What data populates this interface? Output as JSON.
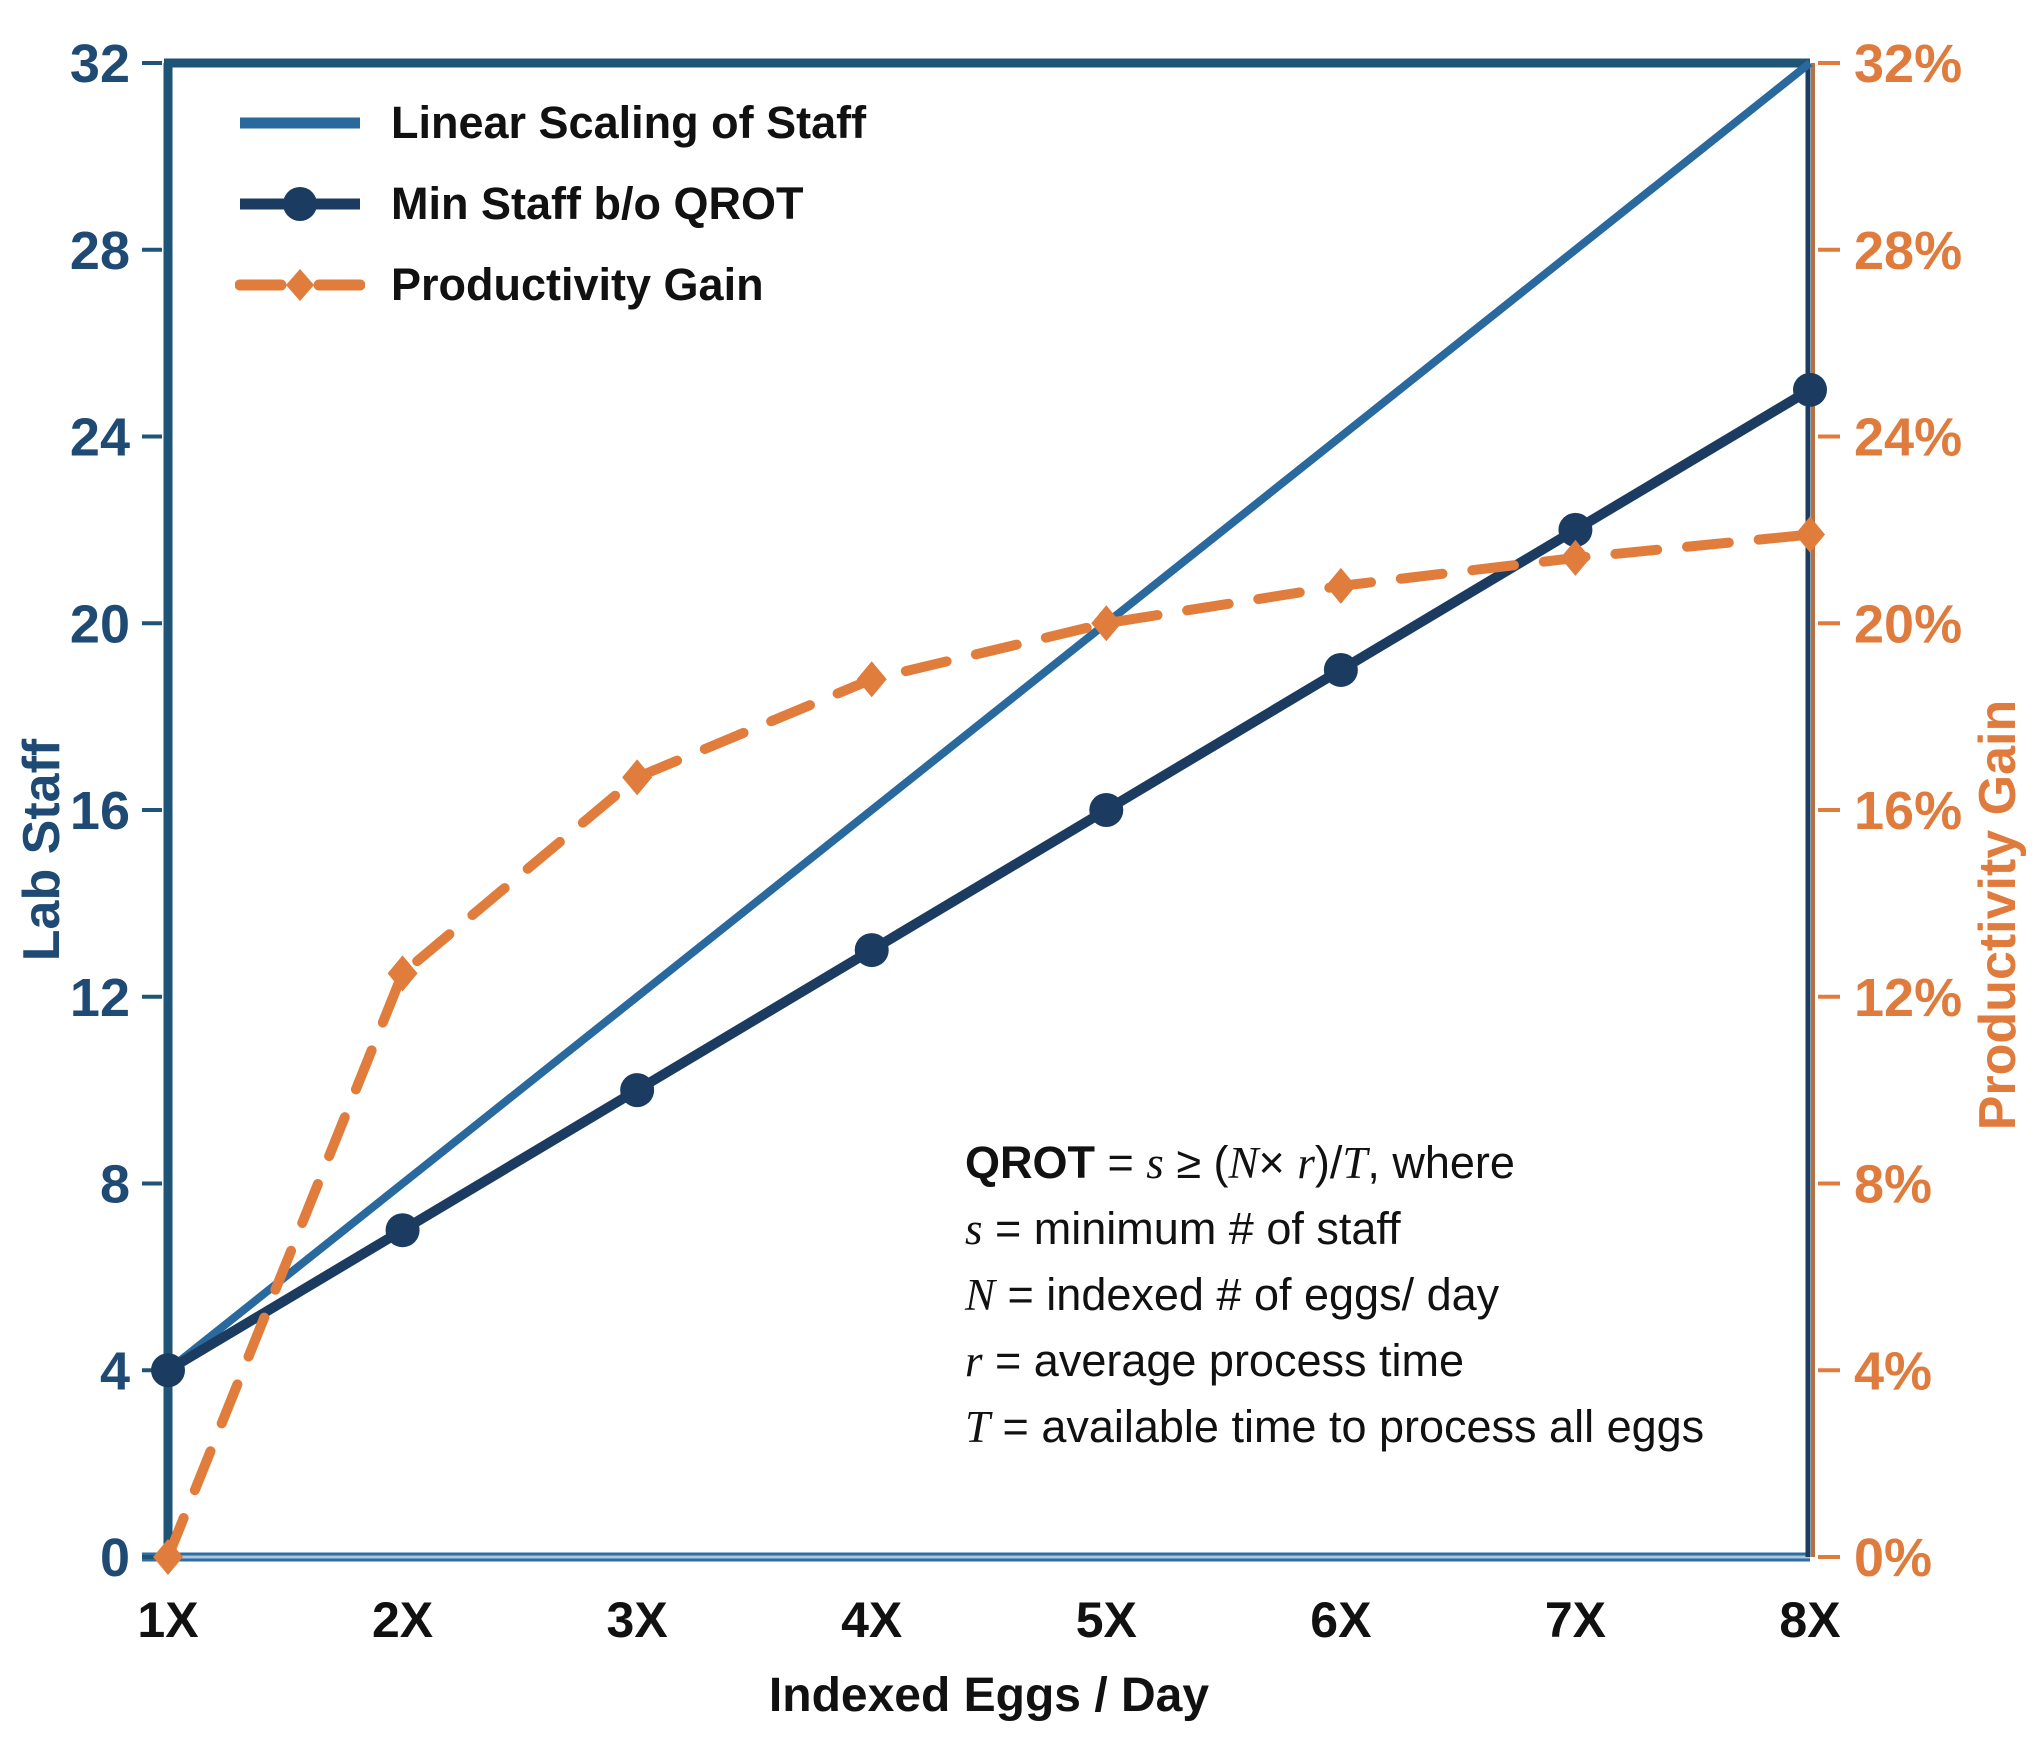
{
  "colors": {
    "linear_blue": "#2A699E",
    "navy": "#1B3C60",
    "orange": "#E07C3C",
    "left_text": "#1F4A73",
    "orange_text": "#DE7B3D",
    "black_text": "#111111",
    "spine_top_left": "#1E5576",
    "spine_bottom_outer": "#2E6DA4",
    "spine_bottom_inner": "#A9C6DE",
    "spine_right_navy": "#1B3C60",
    "spine_right_orange": "#B5713F"
  },
  "chart_data": {
    "type": "line",
    "title": "",
    "xlabel": "Indexed Eggs / Day",
    "ylabel_left": "Lab Staff",
    "ylabel_right": "Productivity Gain",
    "x_categories": [
      "1X",
      "2X",
      "3X",
      "4X",
      "5X",
      "6X",
      "7X",
      "8X"
    ],
    "ylim_left": [
      0,
      32
    ],
    "ylim_right_percent": [
      0,
      32
    ],
    "grid": false,
    "legend_position": "top-left-inside",
    "y_ticks_left": {
      "values": [
        0,
        4,
        8,
        12,
        16,
        20,
        24,
        28,
        32
      ],
      "labels": [
        "0",
        "4",
        "8",
        "12",
        "16",
        "20",
        "24",
        "28",
        "32"
      ]
    },
    "y_ticks_right": {
      "values": [
        0,
        4,
        8,
        12,
        16,
        20,
        24,
        28,
        32
      ],
      "labels": [
        "0%",
        "4%",
        "8%",
        "12%",
        "16%",
        "20%",
        "24%",
        "28%",
        "32%"
      ]
    },
    "series": [
      {
        "name": "Linear Scaling of Staff",
        "axis": "left",
        "style": "solid",
        "marker": "none",
        "color_key": "linear_blue",
        "values": [
          4,
          8,
          12,
          16,
          20,
          24,
          28,
          32
        ]
      },
      {
        "name": "Min Staff b/o QROT",
        "axis": "left",
        "style": "solid",
        "marker": "circle",
        "color_key": "navy",
        "values": [
          4,
          7,
          10,
          13,
          16,
          19,
          22,
          25
        ]
      },
      {
        "name": "Productivity Gain",
        "axis": "right",
        "style": "dashed",
        "marker": "diamond",
        "color_key": "orange",
        "values": [
          0,
          12.5,
          16.7,
          18.8,
          20.0,
          20.8,
          21.4,
          21.9
        ]
      }
    ]
  },
  "annotation": {
    "lines": [
      [
        {
          "t": "QROT",
          "s": "b"
        },
        {
          "t": " = ",
          "s": "p"
        },
        {
          "t": "s",
          "s": "m"
        },
        {
          "t": " ≥  (",
          "s": "p"
        },
        {
          "t": "N",
          "s": "m"
        },
        {
          "t": "× ",
          "s": "p"
        },
        {
          "t": "r",
          "s": "m"
        },
        {
          "t": ")/",
          "s": "p"
        },
        {
          "t": "T",
          "s": "m"
        },
        {
          "t": ", where",
          "s": "p"
        }
      ],
      [
        {
          "t": "s",
          "s": "m"
        },
        {
          "t": " = minimum # of staff",
          "s": "p"
        }
      ],
      [
        {
          "t": "N",
          "s": "m"
        },
        {
          "t": " = indexed # of eggs/ day",
          "s": "p"
        }
      ],
      [
        {
          "t": "r",
          "s": "m"
        },
        {
          "t": " = average process time",
          "s": "p"
        }
      ],
      [
        {
          "t": "T",
          "s": "m"
        },
        {
          "t": " = available time to process all eggs",
          "s": "p"
        }
      ]
    ]
  }
}
